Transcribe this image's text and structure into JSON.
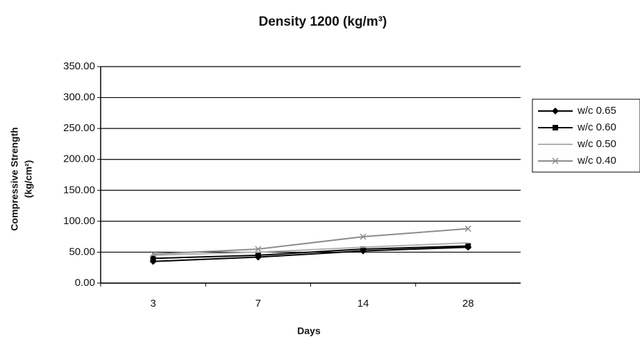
{
  "chart_data": {
    "type": "line",
    "title": "Density 1200 (kg/m³)",
    "x_label": "Days",
    "y_label": [
      "Compressive Strength",
      "(kg/cm²)"
    ],
    "categories": [
      "3",
      "7",
      "14",
      "28"
    ],
    "series": [
      {
        "name": "w/c 0.65",
        "color": "#000000",
        "marker": "diamond",
        "values": [
          35,
          42,
          52,
          58
        ]
      },
      {
        "name": "w/c 0.60",
        "color": "#000000",
        "marker": "square",
        "values": [
          40,
          45,
          55,
          60
        ]
      },
      {
        "name": "w/c 0.50",
        "color": "#b0b0b0",
        "marker": "none",
        "values": [
          45,
          50,
          58,
          65
        ]
      },
      {
        "name": "w/c 0.40",
        "color": "#8c8c8c",
        "marker": "x",
        "values": [
          47,
          55,
          75,
          88
        ]
      }
    ],
    "ylim": [
      0,
      350
    ],
    "yticks": [
      {
        "value": 0,
        "label": "0.00"
      },
      {
        "value": 50,
        "label": "50.00"
      },
      {
        "value": 100,
        "label": "100.00"
      },
      {
        "value": 150,
        "label": "150.00"
      },
      {
        "value": 200,
        "label": "200.00"
      },
      {
        "value": 250,
        "label": "250.00"
      },
      {
        "value": 300,
        "label": "300.00"
      },
      {
        "value": 350,
        "label": "350.00"
      }
    ],
    "grid": true
  }
}
